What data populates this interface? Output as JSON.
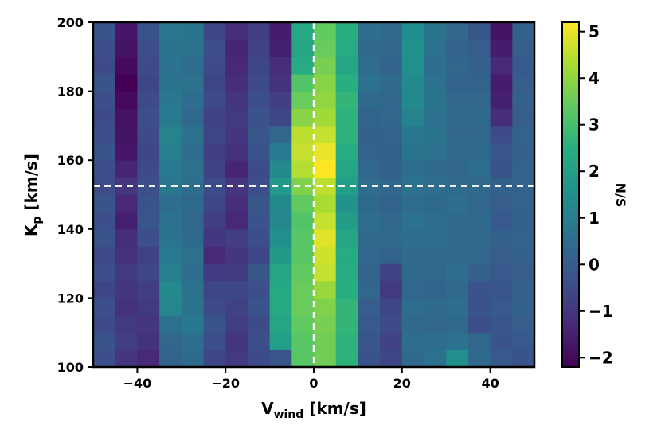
{
  "chart_data": {
    "type": "heatmap",
    "xlabel": {
      "main": "V",
      "sub": "wind",
      "unit": " [km/s]"
    },
    "ylabel": {
      "main": "K",
      "sub": "p",
      "unit": " [km/s]"
    },
    "colorbar_label": "N/S",
    "xlim": [
      -50,
      50
    ],
    "ylim": [
      100,
      200
    ],
    "xticks": [
      -40,
      -20,
      0,
      20,
      40
    ],
    "xtick_labels": [
      "−40",
      "−20",
      "0",
      "20",
      "40"
    ],
    "yticks": [
      100,
      120,
      140,
      160,
      180,
      200
    ],
    "ytick_labels": [
      "100",
      "120",
      "140",
      "160",
      "180",
      "200"
    ],
    "colorbar_range": [
      -2.2,
      5.2
    ],
    "colorbar_ticks": [
      -2,
      -1,
      0,
      1,
      2,
      3,
      4,
      5
    ],
    "colorbar_tick_labels": [
      "−2",
      "−1",
      "0",
      "1",
      "2",
      "3",
      "4",
      "5"
    ],
    "colormap": "viridis",
    "marker_lines": {
      "x": 0,
      "y": 152.5,
      "color": "#ffffff",
      "style": "dashed"
    },
    "x_bins": [
      -47.5,
      -42.5,
      -37.5,
      -32.5,
      -27.5,
      -22.5,
      -17.5,
      -12.5,
      -7.5,
      -2.5,
      2.5,
      7.5,
      12.5,
      17.5,
      22.5,
      27.5,
      32.5,
      37.5,
      42.5,
      47.5
    ],
    "x_bin_width": 5,
    "y_bin_centers": [
      102.5,
      107.5,
      112.5,
      117.5,
      122.5,
      127.5,
      132.5,
      137.5,
      142.5,
      147.5,
      152.5,
      157.5,
      162.5,
      167.5,
      172.5,
      177.5,
      182.5,
      187.5,
      192.5,
      197.5
    ],
    "y_bin_height": 5,
    "z": [
      [
        -0.4,
        -1.0,
        -1.3,
        0.2,
        0.4,
        -0.6,
        -0.9,
        -0.5,
        -0.2,
        3.3,
        3.6,
        2.6,
        -0.3,
        -0.6,
        0.4,
        0.6,
        1.5,
        0.4,
        -0.1,
        -0.3
      ],
      [
        -0.3,
        -0.8,
        -1.1,
        0.3,
        0.5,
        -0.4,
        -1.0,
        -0.4,
        2.0,
        3.3,
        3.6,
        2.6,
        -0.2,
        -0.7,
        0.5,
        0.5,
        0.6,
        0.3,
        -0.3,
        -0.1
      ],
      [
        -0.5,
        -0.9,
        -1.0,
        0.6,
        0.8,
        -0.3,
        -0.8,
        -0.5,
        2.2,
        3.4,
        3.7,
        2.7,
        -0.1,
        -0.5,
        0.4,
        0.3,
        0.4,
        -0.4,
        -0.2,
        0.0
      ],
      [
        -0.4,
        -1.1,
        -0.9,
        1.2,
        0.7,
        -0.5,
        -0.7,
        -0.3,
        2.3,
        3.5,
        3.8,
        2.7,
        0.0,
        -0.6,
        0.5,
        0.4,
        0.5,
        -0.3,
        -0.1,
        0.1
      ],
      [
        -0.6,
        -1.0,
        -0.8,
        1.3,
        0.6,
        -0.6,
        -0.6,
        -0.4,
        2.3,
        3.5,
        4.1,
        2.5,
        0.3,
        -0.9,
        0.3,
        0.2,
        0.4,
        -0.3,
        -0.2,
        0.1
      ],
      [
        -0.4,
        -0.9,
        -0.6,
        1.0,
        0.5,
        -0.9,
        -0.9,
        -0.2,
        2.2,
        3.4,
        4.6,
        2.4,
        0.2,
        -0.7,
        0.4,
        0.3,
        0.5,
        0.1,
        -0.1,
        0.0
      ],
      [
        -0.5,
        -1.1,
        -0.7,
        0.9,
        0.6,
        -1.3,
        -1.0,
        -0.6,
        1.8,
        3.3,
        4.7,
        2.4,
        0.3,
        0.2,
        0.4,
        0.4,
        0.4,
        0.3,
        0.0,
        0.1
      ],
      [
        -0.3,
        -1.2,
        -0.4,
        0.7,
        0.4,
        -1.0,
        -0.8,
        -0.4,
        1.5,
        3.3,
        4.9,
        2.2,
        0.4,
        0.4,
        0.5,
        0.5,
        0.4,
        0.4,
        0.1,
        0.2
      ],
      [
        -0.4,
        -1.5,
        -0.2,
        0.6,
        0.3,
        -0.8,
        -1.3,
        -0.3,
        1.2,
        3.2,
        4.6,
        1.9,
        0.5,
        0.3,
        0.6,
        0.5,
        0.4,
        0.4,
        -0.1,
        0.1
      ],
      [
        -0.3,
        -1.3,
        -0.3,
        0.5,
        0.4,
        -0.6,
        -1.2,
        -0.2,
        1.3,
        3.4,
        4.3,
        1.6,
        0.4,
        0.2,
        0.5,
        0.4,
        0.5,
        0.3,
        0.0,
        0.2
      ],
      [
        -0.5,
        -1.0,
        -0.4,
        0.8,
        0.5,
        -0.5,
        -1.0,
        -0.4,
        1.8,
        3.8,
        4.5,
        2.0,
        0.5,
        0.3,
        0.6,
        0.5,
        0.4,
        0.4,
        0.1,
        0.2
      ],
      [
        -0.4,
        -1.4,
        -0.5,
        0.9,
        0.6,
        -0.7,
        -1.4,
        -0.5,
        1.3,
        4.4,
        5.2,
        2.2,
        0.3,
        0.1,
        0.5,
        0.4,
        0.3,
        0.5,
        -0.3,
        0.2
      ],
      [
        -0.3,
        -1.7,
        -0.6,
        1.0,
        0.5,
        -0.8,
        -1.1,
        -0.3,
        0.9,
        4.6,
        5.0,
        2.4,
        0.2,
        0.1,
        0.7,
        0.6,
        0.4,
        0.4,
        -0.2,
        0.1
      ],
      [
        -0.4,
        -1.8,
        -0.5,
        1.1,
        0.6,
        -0.6,
        -1.0,
        -0.2,
        0.3,
        4.5,
        4.6,
        2.6,
        0.1,
        0.2,
        0.8,
        0.7,
        0.3,
        0.3,
        -0.5,
        0.2
      ],
      [
        -0.5,
        -1.8,
        -0.4,
        0.9,
        0.4,
        -0.7,
        -0.9,
        -0.3,
        -0.6,
        3.9,
        4.2,
        2.6,
        0.2,
        0.3,
        1.1,
        0.6,
        0.4,
        0.4,
        -1.2,
        0.0
      ],
      [
        -0.4,
        -2.0,
        -0.5,
        0.8,
        0.5,
        -0.5,
        -1.0,
        -0.4,
        -0.8,
        3.5,
        4.0,
        2.7,
        0.4,
        0.3,
        1.3,
        0.7,
        0.3,
        0.3,
        -1.5,
        0.1
      ],
      [
        -0.3,
        -2.2,
        -0.6,
        0.7,
        0.6,
        -0.6,
        -1.2,
        -0.5,
        -1.1,
        3.2,
        3.9,
        2.5,
        0.6,
        0.4,
        1.3,
        0.6,
        0.2,
        0.2,
        -1.6,
        0.0
      ],
      [
        -0.5,
        -2.0,
        -0.5,
        0.6,
        0.5,
        -0.5,
        -1.3,
        -0.6,
        -1.2,
        2.4,
        3.7,
        2.2,
        0.5,
        0.2,
        1.5,
        0.5,
        0.3,
        0.1,
        -1.3,
        -0.1
      ],
      [
        -0.4,
        -1.8,
        -0.4,
        0.7,
        0.6,
        -0.4,
        -1.4,
        -0.7,
        -1.5,
        2.2,
        3.5,
        2.4,
        0.4,
        0.3,
        1.6,
        0.6,
        0.2,
        0.0,
        -1.6,
        0.0
      ],
      [
        -0.3,
        -1.7,
        -0.3,
        0.8,
        0.7,
        -0.6,
        -1.2,
        -0.8,
        -1.6,
        2.3,
        3.4,
        2.5,
        0.5,
        0.4,
        1.4,
        0.7,
        0.3,
        -0.2,
        -1.8,
        0.1
      ]
    ]
  }
}
